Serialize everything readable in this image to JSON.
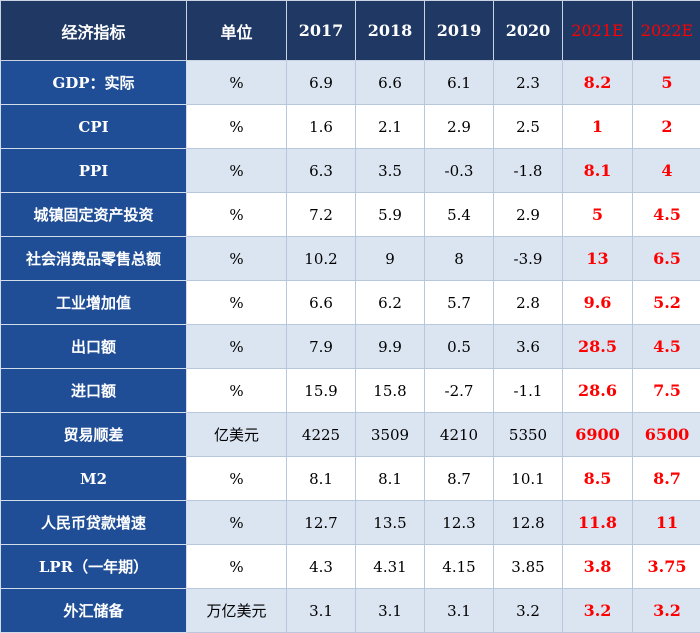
{
  "table": {
    "headers": [
      "经济指标",
      "单位",
      "2017",
      "2018",
      "2019",
      "2020",
      "2021E",
      "2022E"
    ],
    "rows": [
      {
        "name": "GDP：实际",
        "unit": "%",
        "values": [
          "6.9",
          "6.6",
          "6.1",
          "2.3",
          "8.2",
          "5"
        ]
      },
      {
        "name": "CPI",
        "unit": "%",
        "values": [
          "1.6",
          "2.1",
          "2.9",
          "2.5",
          "1",
          "2"
        ]
      },
      {
        "name": "PPI",
        "unit": "%",
        "values": [
          "6.3",
          "3.5",
          "-0.3",
          "-1.8",
          "8.1",
          "4"
        ]
      },
      {
        "name": "城镇固定资产投资",
        "unit": "%",
        "values": [
          "7.2",
          "5.9",
          "5.4",
          "2.9",
          "5",
          "4.5"
        ]
      },
      {
        "name": "社会消费品零售总额",
        "unit": "%",
        "values": [
          "10.2",
          "9",
          "8",
          "-3.9",
          "13",
          "6.5"
        ]
      },
      {
        "name": "工业增加值",
        "unit": "%",
        "values": [
          "6.6",
          "6.2",
          "5.7",
          "2.8",
          "9.6",
          "5.2"
        ]
      },
      {
        "name": "出口额",
        "unit": "%",
        "values": [
          "7.9",
          "9.9",
          "0.5",
          "3.6",
          "28.5",
          "4.5"
        ]
      },
      {
        "name": "进口额",
        "unit": "%",
        "values": [
          "15.9",
          "15.8",
          "-2.7",
          "-1.1",
          "28.6",
          "7.5"
        ]
      },
      {
        "name": "贸易顺差",
        "unit": "亿美元",
        "values": [
          "4225",
          "3509",
          "4210",
          "5350",
          "6900",
          "6500"
        ]
      },
      {
        "name": "M2",
        "unit": "%",
        "values": [
          "8.1",
          "8.1",
          "8.7",
          "10.1",
          "8.5",
          "8.7"
        ]
      },
      {
        "name": "人民币贷款增速",
        "unit": "%",
        "values": [
          "12.7",
          "13.5",
          "12.3",
          "12.8",
          "11.8",
          "11"
        ]
      },
      {
        "name": "LPR（一年期）",
        "unit": "%",
        "values": [
          "4.3",
          "4.31",
          "4.15",
          "3.85",
          "3.8",
          "3.75"
        ]
      },
      {
        "name": "外汇储备",
        "unit": "万亿美元",
        "values": [
          "3.1",
          "3.1",
          "3.1",
          "3.2",
          "3.2",
          "3.2"
        ]
      }
    ]
  },
  "colors": {
    "header_bg": "#1f3864",
    "name_col_bg": "#1f4e96",
    "stripe_bg": "#dbe4f1",
    "estimate_text": "#ff0000"
  }
}
